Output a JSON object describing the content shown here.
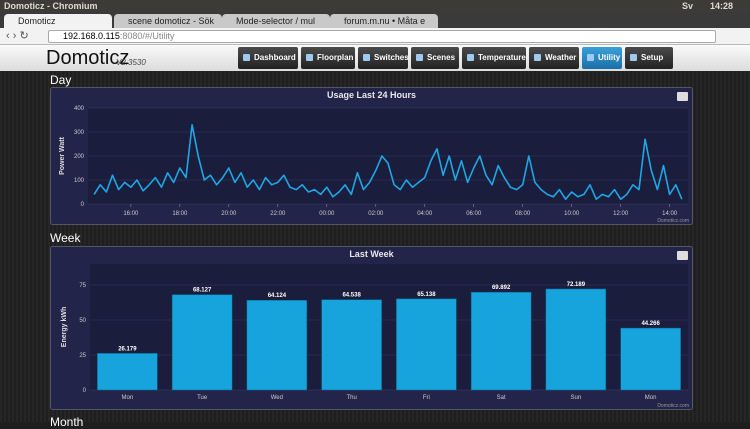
{
  "window": {
    "title": "Domoticz - Chromium",
    "keyboard": "Sv",
    "clock": "14:28"
  },
  "tabs": [
    "Domoticz",
    "scene domoticz - Sök",
    "Mode-selector / mul",
    "forum.m.nu • Måta e"
  ],
  "address": {
    "host": "192.168.0.115",
    "rest": ":8080/#/Utility"
  },
  "app": {
    "name": "Domoticz",
    "version": "V2.3530",
    "nav": [
      "Dashboard",
      "Floorplan",
      "Switches",
      "Scenes",
      "Temperature",
      "Weather",
      "Utility",
      "Setup"
    ]
  },
  "sections": [
    "Day",
    "Week",
    "Month"
  ],
  "chart_data": [
    {
      "type": "line",
      "title": "Usage Last 24 Hours",
      "y_label": "Power Watt",
      "credits": "Domoticz.com",
      "color": "#1ea7e4",
      "x": [
        14.5,
        14.75,
        15,
        15.25,
        15.5,
        15.75,
        16,
        16.25,
        16.5,
        16.75,
        17,
        17.25,
        17.5,
        17.75,
        18,
        18.25,
        18.5,
        18.75,
        19,
        19.25,
        19.5,
        19.75,
        20,
        20.25,
        20.5,
        20.75,
        21,
        21.25,
        21.5,
        21.75,
        22,
        22.25,
        22.5,
        22.75,
        23,
        23.25,
        23.5,
        23.75,
        24,
        24.25,
        24.5,
        24.75,
        25,
        25.25,
        25.5,
        25.75,
        26,
        26.25,
        26.5,
        26.75,
        27,
        27.25,
        27.5,
        27.75,
        28,
        28.25,
        28.5,
        28.75,
        29,
        29.25,
        29.5,
        29.75,
        30,
        30.25,
        30.5,
        30.75,
        31,
        31.25,
        31.5,
        31.75,
        32,
        32.25,
        32.5,
        32.75,
        33,
        33.25,
        33.5,
        33.75,
        34,
        34.25,
        34.5,
        34.75,
        35,
        35.25,
        35.5,
        35.75,
        36,
        36.25,
        36.5,
        36.75,
        37,
        37.25,
        37.5,
        37.75,
        38,
        38.25,
        38.5
      ],
      "values": [
        40,
        80,
        50,
        120,
        60,
        90,
        70,
        100,
        55,
        80,
        110,
        70,
        130,
        90,
        150,
        110,
        330,
        200,
        100,
        120,
        80,
        110,
        150,
        90,
        130,
        70,
        100,
        60,
        110,
        80,
        90,
        120,
        70,
        60,
        80,
        50,
        60,
        40,
        70,
        30,
        50,
        80,
        40,
        130,
        60,
        90,
        140,
        200,
        170,
        80,
        60,
        100,
        70,
        90,
        110,
        180,
        230,
        120,
        200,
        100,
        180,
        90,
        150,
        200,
        120,
        80,
        160,
        110,
        70,
        60,
        80,
        200,
        90,
        60,
        40,
        30,
        60,
        20,
        50,
        30,
        40,
        80,
        20,
        40,
        30,
        60,
        20,
        40,
        80,
        60,
        270,
        140,
        60,
        160,
        40,
        80,
        20
      ],
      "xlim": [
        14.25,
        38.75
      ],
      "ylim": [
        0,
        400
      ],
      "yticks": [
        0,
        100,
        200,
        300,
        400
      ],
      "xticks": [
        {
          "value": 16,
          "label": "16:00"
        },
        {
          "value": 18,
          "label": "18:00"
        },
        {
          "value": 20,
          "label": "20:00"
        },
        {
          "value": 22,
          "label": "22:00"
        },
        {
          "value": 24,
          "label": "00:00"
        },
        {
          "value": 26,
          "label": "02:00"
        },
        {
          "value": 28,
          "label": "04:00"
        },
        {
          "value": 30,
          "label": "06:00"
        },
        {
          "value": 32,
          "label": "08:00"
        },
        {
          "value": 34,
          "label": "10:00"
        },
        {
          "value": 36,
          "label": "12:00"
        },
        {
          "value": 38,
          "label": "14:00"
        }
      ]
    },
    {
      "type": "bar",
      "title": "Last Week",
      "y_label": "Energy kWh",
      "credits": "Domoticz.com",
      "color": "#17a3dc",
      "categories": [
        "Mon",
        "Tue",
        "Wed",
        "Thu",
        "Fri",
        "Sat",
        "Sun",
        "Mon"
      ],
      "values": [
        26.179,
        68.127,
        64.124,
        64.538,
        65.138,
        69.892,
        72.189,
        44.266
      ],
      "ylim": [
        0,
        90
      ],
      "yticks": [
        0,
        25,
        50,
        75
      ]
    }
  ]
}
